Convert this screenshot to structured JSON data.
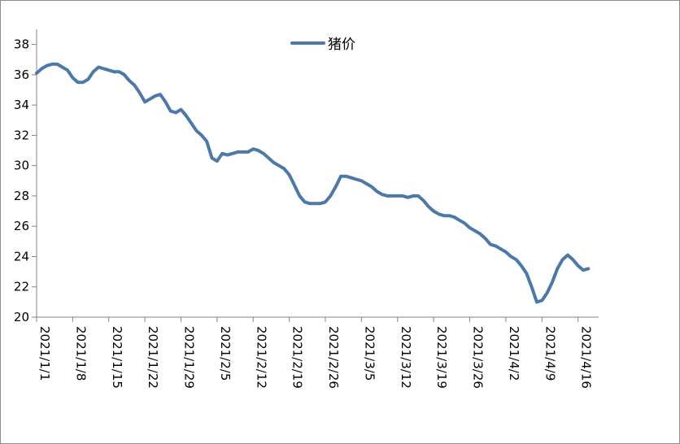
{
  "chart_data": {
    "type": "line",
    "title": "",
    "xlabel": "",
    "ylabel": "",
    "ylim": [
      20,
      39
    ],
    "yticks": [
      20,
      22,
      24,
      26,
      28,
      30,
      32,
      34,
      36,
      38
    ],
    "xlim": [
      "2021/1/1",
      "2021/4/20"
    ],
    "x_tick_labels": [
      "2021/1/1",
      "2021/1/8",
      "2021/1/15",
      "2021/1/22",
      "2021/1/29",
      "2021/2/5",
      "2021/2/12",
      "2021/2/19",
      "2021/2/26",
      "2021/3/5",
      "2021/3/12",
      "2021/3/19",
      "2021/3/26",
      "2021/4/2",
      "2021/4/9",
      "2021/4/16"
    ],
    "grid": false,
    "legend_position": "top",
    "line_color": "#4a79aa",
    "series": [
      {
        "name": "猪价",
        "points": [
          [
            "2021/1/1",
            36.1
          ],
          [
            "2021/1/2",
            36.4
          ],
          [
            "2021/1/3",
            36.6
          ],
          [
            "2021/1/4",
            36.7
          ],
          [
            "2021/1/5",
            36.7
          ],
          [
            "2021/1/6",
            36.5
          ],
          [
            "2021/1/7",
            36.3
          ],
          [
            "2021/1/8",
            35.8
          ],
          [
            "2021/1/9",
            35.5
          ],
          [
            "2021/1/10",
            35.5
          ],
          [
            "2021/1/11",
            35.7
          ],
          [
            "2021/1/12",
            36.2
          ],
          [
            "2021/1/13",
            36.5
          ],
          [
            "2021/1/14",
            36.4
          ],
          [
            "2021/1/15",
            36.3
          ],
          [
            "2021/1/16",
            36.2
          ],
          [
            "2021/1/17",
            36.2
          ],
          [
            "2021/1/18",
            36.0
          ],
          [
            "2021/1/19",
            35.6
          ],
          [
            "2021/1/20",
            35.3
          ],
          [
            "2021/1/21",
            34.8
          ],
          [
            "2021/1/22",
            34.2
          ],
          [
            "2021/1/23",
            34.4
          ],
          [
            "2021/1/24",
            34.6
          ],
          [
            "2021/1/25",
            34.7
          ],
          [
            "2021/1/26",
            34.2
          ],
          [
            "2021/1/27",
            33.6
          ],
          [
            "2021/1/28",
            33.5
          ],
          [
            "2021/1/29",
            33.7
          ],
          [
            "2021/1/30",
            33.3
          ],
          [
            "2021/1/31",
            32.8
          ],
          [
            "2021/2/1",
            32.3
          ],
          [
            "2021/2/2",
            32.0
          ],
          [
            "2021/2/3",
            31.6
          ],
          [
            "2021/2/4",
            30.5
          ],
          [
            "2021/2/5",
            30.3
          ],
          [
            "2021/2/6",
            30.8
          ],
          [
            "2021/2/7",
            30.7
          ],
          [
            "2021/2/8",
            30.8
          ],
          [
            "2021/2/9",
            30.9
          ],
          [
            "2021/2/10",
            30.9
          ],
          [
            "2021/2/11",
            30.9
          ],
          [
            "2021/2/12",
            31.1
          ],
          [
            "2021/2/13",
            31.0
          ],
          [
            "2021/2/14",
            30.8
          ],
          [
            "2021/2/15",
            30.5
          ],
          [
            "2021/2/16",
            30.2
          ],
          [
            "2021/2/17",
            30.0
          ],
          [
            "2021/2/18",
            29.8
          ],
          [
            "2021/2/19",
            29.4
          ],
          [
            "2021/2/20",
            28.7
          ],
          [
            "2021/2/21",
            28.0
          ],
          [
            "2021/2/22",
            27.6
          ],
          [
            "2021/2/23",
            27.5
          ],
          [
            "2021/2/24",
            27.5
          ],
          [
            "2021/2/25",
            27.5
          ],
          [
            "2021/2/26",
            27.6
          ],
          [
            "2021/2/27",
            28.0
          ],
          [
            "2021/2/28",
            28.6
          ],
          [
            "2021/3/1",
            29.3
          ],
          [
            "2021/3/2",
            29.3
          ],
          [
            "2021/3/3",
            29.2
          ],
          [
            "2021/3/4",
            29.1
          ],
          [
            "2021/3/5",
            29.0
          ],
          [
            "2021/3/6",
            28.8
          ],
          [
            "2021/3/7",
            28.6
          ],
          [
            "2021/3/8",
            28.3
          ],
          [
            "2021/3/9",
            28.1
          ],
          [
            "2021/3/10",
            28.0
          ],
          [
            "2021/3/11",
            28.0
          ],
          [
            "2021/3/12",
            28.0
          ],
          [
            "2021/3/13",
            28.0
          ],
          [
            "2021/3/14",
            27.9
          ],
          [
            "2021/3/15",
            28.0
          ],
          [
            "2021/3/16",
            28.0
          ],
          [
            "2021/3/17",
            27.7
          ],
          [
            "2021/3/18",
            27.3
          ],
          [
            "2021/3/19",
            27.0
          ],
          [
            "2021/3/20",
            26.8
          ],
          [
            "2021/3/21",
            26.7
          ],
          [
            "2021/3/22",
            26.7
          ],
          [
            "2021/3/23",
            26.6
          ],
          [
            "2021/3/24",
            26.4
          ],
          [
            "2021/3/25",
            26.2
          ],
          [
            "2021/3/26",
            25.9
          ],
          [
            "2021/3/27",
            25.7
          ],
          [
            "2021/3/28",
            25.5
          ],
          [
            "2021/3/29",
            25.2
          ],
          [
            "2021/3/30",
            24.8
          ],
          [
            "2021/3/31",
            24.7
          ],
          [
            "2021/4/1",
            24.5
          ],
          [
            "2021/4/2",
            24.3
          ],
          [
            "2021/4/3",
            24.0
          ],
          [
            "2021/4/4",
            23.8
          ],
          [
            "2021/4/5",
            23.4
          ],
          [
            "2021/4/6",
            22.9
          ],
          [
            "2021/4/7",
            22.0
          ],
          [
            "2021/4/8",
            21.0
          ],
          [
            "2021/4/9",
            21.1
          ],
          [
            "2021/4/10",
            21.6
          ],
          [
            "2021/4/11",
            22.3
          ],
          [
            "2021/4/12",
            23.2
          ],
          [
            "2021/4/13",
            23.8
          ],
          [
            "2021/4/14",
            24.1
          ],
          [
            "2021/4/15",
            23.8
          ],
          [
            "2021/4/16",
            23.4
          ],
          [
            "2021/4/17",
            23.1
          ],
          [
            "2021/4/18",
            23.2
          ]
        ]
      }
    ]
  }
}
